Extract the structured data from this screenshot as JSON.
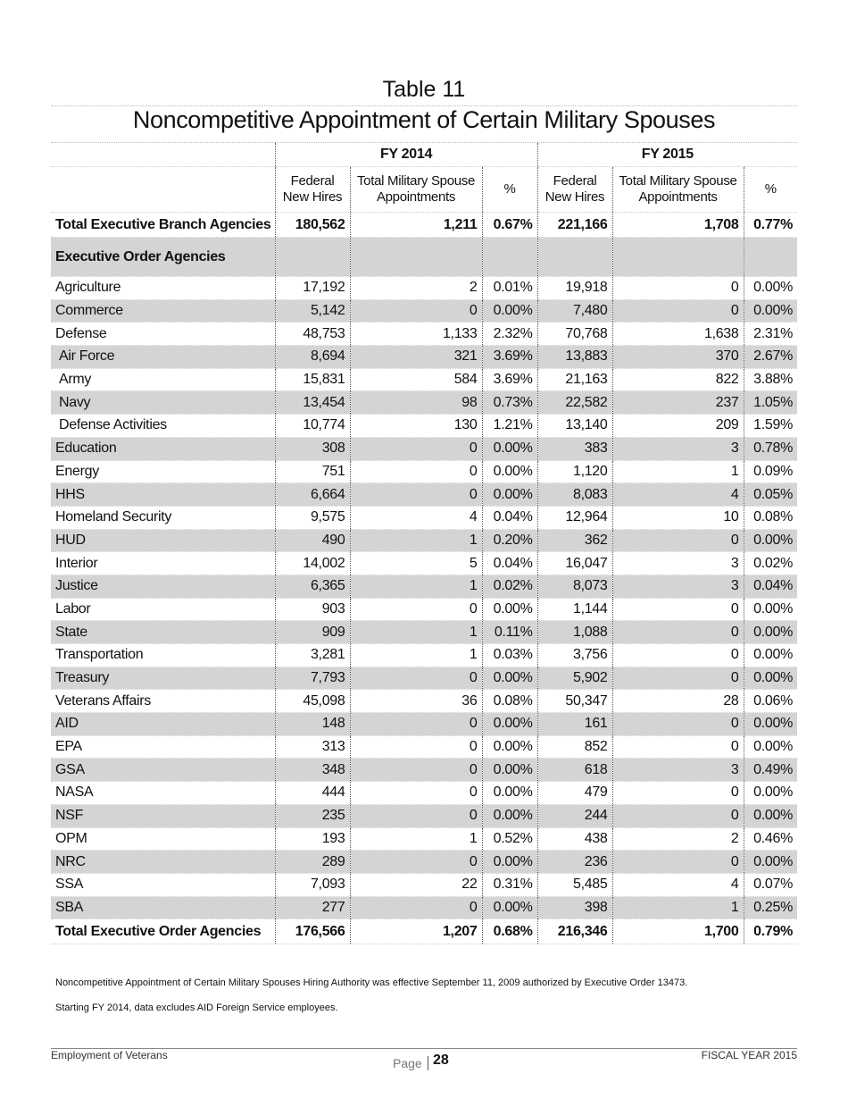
{
  "title": "Table 11",
  "subtitle": "Noncompetitive Appointment of Certain Military Spouses",
  "table": {
    "year_headers": [
      "FY 2014",
      "FY 2015"
    ],
    "column_headers": [
      [
        "Federal",
        "New Hires"
      ],
      [
        "Total Military Spouse",
        "Appointments"
      ],
      [
        "%"
      ],
      [
        "Federal",
        "New Hires"
      ],
      [
        "Total Military Spouse",
        "Appointments"
      ],
      [
        "%"
      ]
    ],
    "total_row": [
      "Total Executive Branch Agencies",
      "180,562",
      "1,211",
      "0.67%",
      "221,166",
      "1,708",
      "0.77%"
    ],
    "section_label": "Executive Order Agencies",
    "rows": [
      [
        "Agriculture",
        "17,192",
        "2",
        "0.01%",
        "19,918",
        "0",
        "0.00%"
      ],
      [
        "Commerce",
        "5,142",
        "0",
        "0.00%",
        "7,480",
        "0",
        "0.00%"
      ],
      [
        "Defense",
        "48,753",
        "1,133",
        "2.32%",
        "70,768",
        "1,638",
        "2.31%"
      ],
      [
        "Air Force",
        "8,694",
        "321",
        "3.69%",
        "13,883",
        "370",
        "2.67%"
      ],
      [
        "Army",
        "15,831",
        "584",
        "3.69%",
        "21,163",
        "822",
        "3.88%"
      ],
      [
        "Navy",
        "13,454",
        "98",
        "0.73%",
        "22,582",
        "237",
        "1.05%"
      ],
      [
        "Defense Activities",
        "10,774",
        "130",
        "1.21%",
        "13,140",
        "209",
        "1.59%"
      ],
      [
        "Education",
        "308",
        "0",
        "0.00%",
        "383",
        "3",
        "0.78%"
      ],
      [
        "Energy",
        "751",
        "0",
        "0.00%",
        "1,120",
        "1",
        "0.09%"
      ],
      [
        "HHS",
        "6,664",
        "0",
        "0.00%",
        "8,083",
        "4",
        "0.05%"
      ],
      [
        "Homeland Security",
        "9,575",
        "4",
        "0.04%",
        "12,964",
        "10",
        "0.08%"
      ],
      [
        "HUD",
        "490",
        "1",
        "0.20%",
        "362",
        "0",
        "0.00%"
      ],
      [
        "Interior",
        "14,002",
        "5",
        "0.04%",
        "16,047",
        "3",
        "0.02%"
      ],
      [
        "Justice",
        "6,365",
        "1",
        "0.02%",
        "8,073",
        "3",
        "0.04%"
      ],
      [
        "Labor",
        "903",
        "0",
        "0.00%",
        "1,144",
        "0",
        "0.00%"
      ],
      [
        "State",
        "909",
        "1",
        "0.11%",
        "1,088",
        "0",
        "0.00%"
      ],
      [
        "Transportation",
        "3,281",
        "1",
        "0.03%",
        "3,756",
        "0",
        "0.00%"
      ],
      [
        "Treasury",
        "7,793",
        "0",
        "0.00%",
        "5,902",
        "0",
        "0.00%"
      ],
      [
        "Veterans Affairs",
        "45,098",
        "36",
        "0.08%",
        "50,347",
        "28",
        "0.06%"
      ],
      [
        "AID",
        "148",
        "0",
        "0.00%",
        "161",
        "0",
        "0.00%"
      ],
      [
        "EPA",
        "313",
        "0",
        "0.00%",
        "852",
        "0",
        "0.00%"
      ],
      [
        "GSA",
        "348",
        "0",
        "0.00%",
        "618",
        "3",
        "0.49%"
      ],
      [
        "NASA",
        "444",
        "0",
        "0.00%",
        "479",
        "0",
        "0.00%"
      ],
      [
        "NSF",
        "235",
        "0",
        "0.00%",
        "244",
        "0",
        "0.00%"
      ],
      [
        "OPM",
        "193",
        "1",
        "0.52%",
        "438",
        "2",
        "0.46%"
      ],
      [
        "NRC",
        "289",
        "0",
        "0.00%",
        "236",
        "0",
        "0.00%"
      ],
      [
        "SSA",
        "7,093",
        "22",
        "0.31%",
        "5,485",
        "4",
        "0.07%"
      ],
      [
        "SBA",
        "277",
        "0",
        "0.00%",
        "398",
        "1",
        "0.25%"
      ]
    ],
    "total_eo_row": [
      "Total Executive Order Agencies",
      "176,566",
      "1,207",
      "0.68%",
      "216,346",
      "1,700",
      "0.79%"
    ]
  },
  "notes": [
    "Noncompetitive Appointment of Certain Military Spouses Hiring Authority was effective September 11, 2009 authorized by Executive Order 13473.",
    "Starting FY 2014, data excludes AID Foreign Service employees."
  ],
  "footer": {
    "left": "Employment of Veterans",
    "page_label": "Page",
    "page_number": "28",
    "right": "FISCAL YEAR 2015"
  }
}
